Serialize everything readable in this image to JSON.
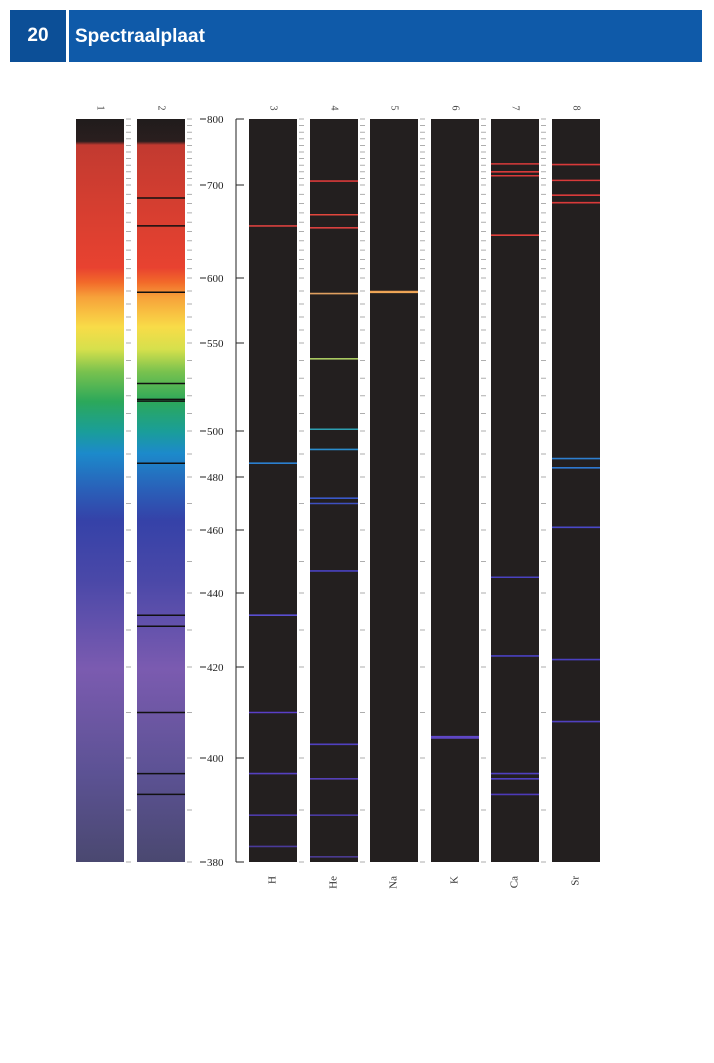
{
  "header": {
    "page_number": "20",
    "title": "Spectraalplaat"
  },
  "chart_data": {
    "type": "spectral-plate",
    "unit": "nm",
    "scale_ticks": [
      {
        "value": 800,
        "label": "800"
      },
      {
        "value": 700,
        "label": "700"
      },
      {
        "value": 600,
        "label": "600"
      },
      {
        "value": 550,
        "label": "550"
      },
      {
        "value": 500,
        "label": "500"
      },
      {
        "value": 480,
        "label": "480"
      },
      {
        "value": 460,
        "label": "460"
      },
      {
        "value": 440,
        "label": "440"
      },
      {
        "value": 420,
        "label": "420"
      },
      {
        "value": 400,
        "label": "400"
      },
      {
        "value": 380,
        "label": "380"
      }
    ],
    "columns": [
      {
        "number": "1",
        "element": "",
        "kind": "continuous",
        "lines": []
      },
      {
        "number": "2",
        "element": "",
        "kind": "absorption",
        "lines": [
          686,
          656,
          589,
          527,
          518,
          517,
          486,
          434,
          431,
          410,
          397,
          393
        ]
      },
      {
        "number": "3",
        "element": "H",
        "kind": "emission",
        "lines": [
          {
            "nm": 656,
            "color": "#d8403f"
          },
          {
            "nm": 486,
            "color": "#2b7fcf"
          },
          {
            "nm": 434,
            "color": "#5a4ed0"
          },
          {
            "nm": 410,
            "color": "#5a3fc8"
          },
          {
            "nm": 397,
            "color": "#5540c0"
          },
          {
            "nm": 389,
            "color": "#4d3aa8"
          },
          {
            "nm": 383,
            "color": "#4a3a9a"
          }
        ]
      },
      {
        "number": "4",
        "element": "He",
        "kind": "emission",
        "lines": [
          {
            "nm": 706,
            "color": "#d83a3a"
          },
          {
            "nm": 668,
            "color": "#e0463c"
          },
          {
            "nm": 654,
            "color": "#d8403f"
          },
          {
            "nm": 588,
            "color": "#e0a060"
          },
          {
            "nm": 541,
            "color": "#a8c860"
          },
          {
            "nm": 501,
            "color": "#2e9fb0"
          },
          {
            "nm": 492,
            "color": "#2a8ccc"
          },
          {
            "nm": 472,
            "color": "#3a58c8"
          },
          {
            "nm": 470,
            "color": "#3e50c0"
          },
          {
            "nm": 447,
            "color": "#4a42c0"
          },
          {
            "nm": 403,
            "color": "#5040c0"
          },
          {
            "nm": 396,
            "color": "#5540b8"
          },
          {
            "nm": 389,
            "color": "#4a3aa0"
          },
          {
            "nm": 381,
            "color": "#4a3a90"
          }
        ]
      },
      {
        "number": "5",
        "element": "Na",
        "kind": "emission",
        "lines": [
          {
            "nm": 589.6,
            "color": "#e89a50"
          },
          {
            "nm": 589.0,
            "color": "#f0a858"
          }
        ]
      },
      {
        "number": "6",
        "element": "K",
        "kind": "emission",
        "lines": [
          {
            "nm": 404.7,
            "color": "#6048c8"
          },
          {
            "nm": 404.4,
            "color": "#6048c8"
          }
        ]
      },
      {
        "number": "7",
        "element": "Ca",
        "kind": "emission",
        "lines": [
          {
            "nm": 732,
            "color": "#d83a3a"
          },
          {
            "nm": 720,
            "color": "#d83a3a"
          },
          {
            "nm": 714,
            "color": "#d83a3a"
          },
          {
            "nm": 646,
            "color": "#e0403c"
          },
          {
            "nm": 445,
            "color": "#4a42c0"
          },
          {
            "nm": 423,
            "color": "#4a40c0"
          },
          {
            "nm": 397,
            "color": "#5040c0"
          },
          {
            "nm": 396,
            "color": "#5040c0"
          },
          {
            "nm": 393,
            "color": "#4d3ab8"
          }
        ]
      },
      {
        "number": "8",
        "element": "Sr",
        "kind": "emission",
        "lines": [
          {
            "nm": 731,
            "color": "#d83a3a"
          },
          {
            "nm": 707,
            "color": "#d83a3a"
          },
          {
            "nm": 689,
            "color": "#d83a3a"
          },
          {
            "nm": 681,
            "color": "#d83a3a"
          },
          {
            "nm": 488,
            "color": "#2e7fcf"
          },
          {
            "nm": 484,
            "color": "#2e78cf"
          },
          {
            "nm": 461,
            "color": "#4a48c8"
          },
          {
            "nm": 422,
            "color": "#4a40c0"
          },
          {
            "nm": 408,
            "color": "#5040c0"
          }
        ]
      }
    ]
  }
}
